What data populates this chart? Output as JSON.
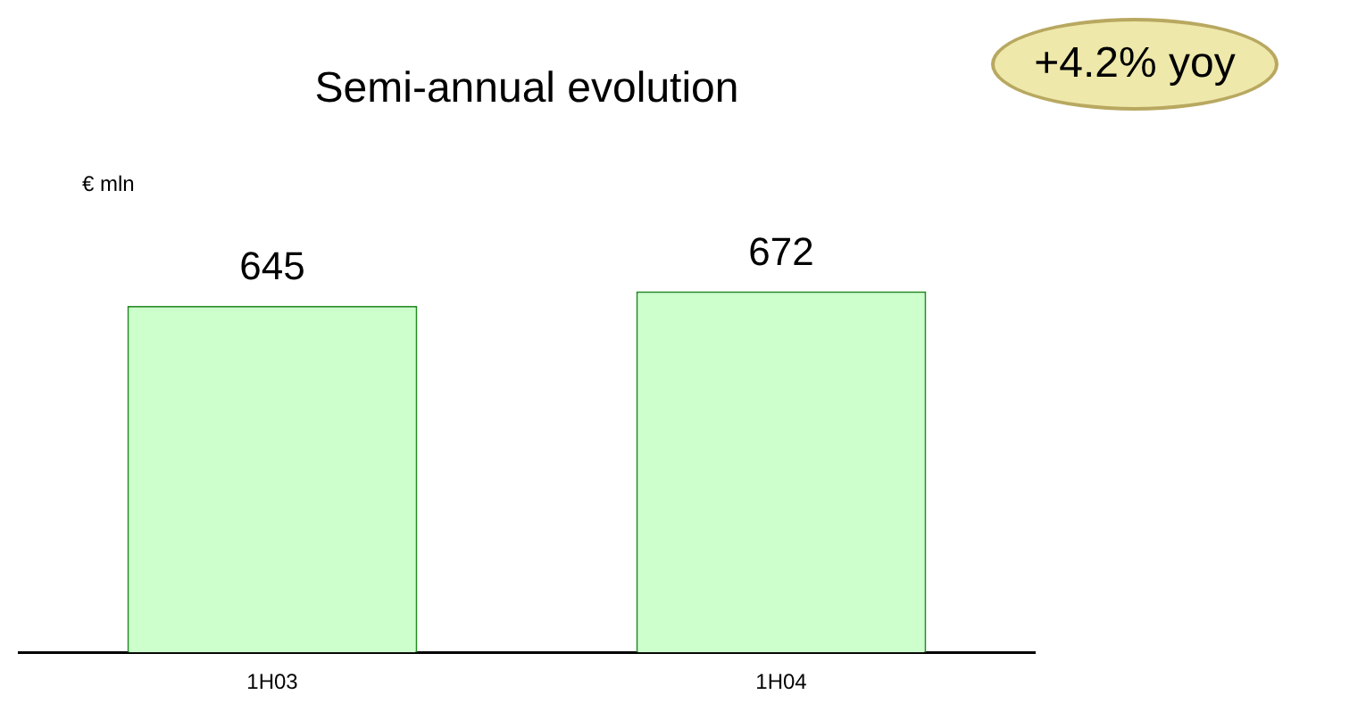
{
  "chart_data": {
    "type": "bar",
    "title": "Semi-annual evolution",
    "categories": [
      "1H03",
      "1H04"
    ],
    "values": [
      645,
      672
    ],
    "color": "#ccffcc",
    "data_labels": true,
    "grid": false,
    "legend": false,
    "tick_labels": "x",
    "annotations": [
      "€ mln",
      "+4.2% yoy"
    ]
  }
}
